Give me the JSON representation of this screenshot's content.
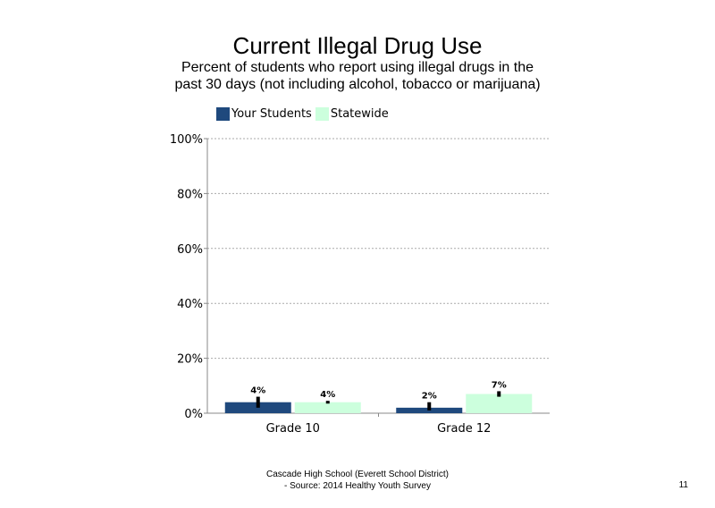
{
  "slide": {
    "title": "Current Illegal Drug Use",
    "subtitle": "Percent of students who report using illegal drugs in the past 30 days (not including alcohol, tobacco or marijuana)",
    "footer_line1": "Cascade High School (Everett School District)",
    "footer_line2": "- Source: 2014 Healthy Youth Survey",
    "page_number": "11"
  },
  "chart_data": {
    "type": "bar",
    "categories": [
      "Grade 10",
      "Grade 12"
    ],
    "series": [
      {
        "name": "Your Students",
        "color": "#1f497d",
        "values": [
          4,
          2
        ],
        "labels": [
          "4%",
          "2%"
        ],
        "error": [
          [
            2,
            6
          ],
          [
            1,
            4
          ]
        ]
      },
      {
        "name": "Statewide",
        "color": "#ccffdd",
        "values": [
          4,
          7
        ],
        "labels": [
          "4%",
          "7%"
        ],
        "error": [
          [
            3.5,
            4.5
          ],
          [
            6,
            8
          ]
        ]
      }
    ],
    "ylim": [
      0,
      100
    ],
    "yticks": [
      0,
      20,
      40,
      60,
      80,
      100
    ],
    "ytick_labels": [
      "0%",
      "20%",
      "40%",
      "60%",
      "80%",
      "100%"
    ],
    "gridlines": "dotted",
    "legend_position": "top"
  }
}
